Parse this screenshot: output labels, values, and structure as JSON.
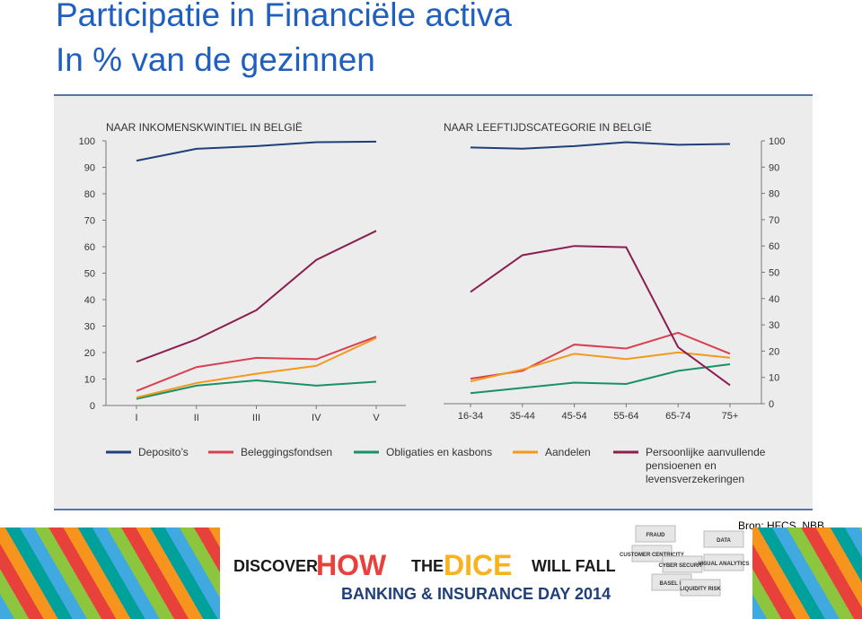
{
  "header": {
    "title": "Participatie in Financiële activa",
    "subtitle": "In % van de gezinnen"
  },
  "chart_data": [
    {
      "type": "line",
      "title": "NAAR INKOMENSKWINTIEL IN BELGIË",
      "categories": [
        "I",
        "II",
        "III",
        "IV",
        "V"
      ],
      "ylim": [
        0,
        100
      ],
      "yticks": [
        0,
        10,
        20,
        30,
        40,
        50,
        60,
        70,
        80,
        90,
        100
      ],
      "y_axis_side": "left",
      "series": [
        {
          "name": "Deposito’s",
          "color": "#1f3f7a",
          "values": [
            92.5,
            97,
            98,
            99.5,
            99.7
          ]
        },
        {
          "name": "Beleggingsfondsen",
          "color": "#d9404f",
          "values": [
            5.5,
            14.5,
            18,
            17.5,
            26
          ]
        },
        {
          "name": "Obligaties en kasbons",
          "color": "#1a9068",
          "values": [
            2.5,
            7.5,
            9.5,
            7.5,
            9
          ]
        },
        {
          "name": "Aandelen",
          "color": "#f39a1e",
          "values": [
            3,
            8.5,
            12,
            15,
            25.5
          ]
        },
        {
          "name": "Persoonlijke aanvullende pensioenen en levensverzekeringen",
          "color": "#8a1f4f",
          "values": [
            16.5,
            25,
            36,
            55,
            66
          ]
        }
      ]
    },
    {
      "type": "line",
      "title": "NAAR LEEFTIJDSCATEGORIE IN BELGIË",
      "categories": [
        "16-34",
        "35-44",
        "45-54",
        "55-64",
        "65-74",
        "75+"
      ],
      "ylim": [
        0,
        100
      ],
      "yticks": [
        0,
        10,
        20,
        30,
        40,
        50,
        60,
        70,
        80,
        90,
        100
      ],
      "y_axis_side": "right",
      "series": [
        {
          "color": "#1f3f7a",
          "values": [
            97.5,
            97,
            98,
            99.5,
            98.5,
            98.8
          ]
        },
        {
          "color": "#d9404f",
          "values": [
            9.5,
            12.5,
            22.5,
            21,
            27,
            19
          ]
        },
        {
          "color": "#1a9068",
          "values": [
            4,
            6,
            8,
            7.5,
            12.5,
            15
          ]
        },
        {
          "color": "#f39a1e",
          "values": [
            8.5,
            13,
            19,
            17,
            19.5,
            17.5
          ]
        },
        {
          "color": "#8a1f4f",
          "values": [
            42.5,
            56.5,
            60,
            59.5,
            21.5,
            7
          ]
        }
      ]
    }
  ],
  "source": "Bron: HFCS, NBB",
  "footer": {
    "discover": "DISCOVER",
    "how": "HOW",
    "the": "THE",
    "dice": "DICE",
    "will_fall": "WILL FALL",
    "event": "BANKING & INSURANCE DAY 2014",
    "dice_labels": [
      "FRAUD",
      "CUSTOMER CENTRICITY",
      "DATA",
      "CYBER SECURITY",
      "VISUAL ANALYTICS",
      "BASEL III",
      "LIQUIDITY RISK"
    ]
  }
}
